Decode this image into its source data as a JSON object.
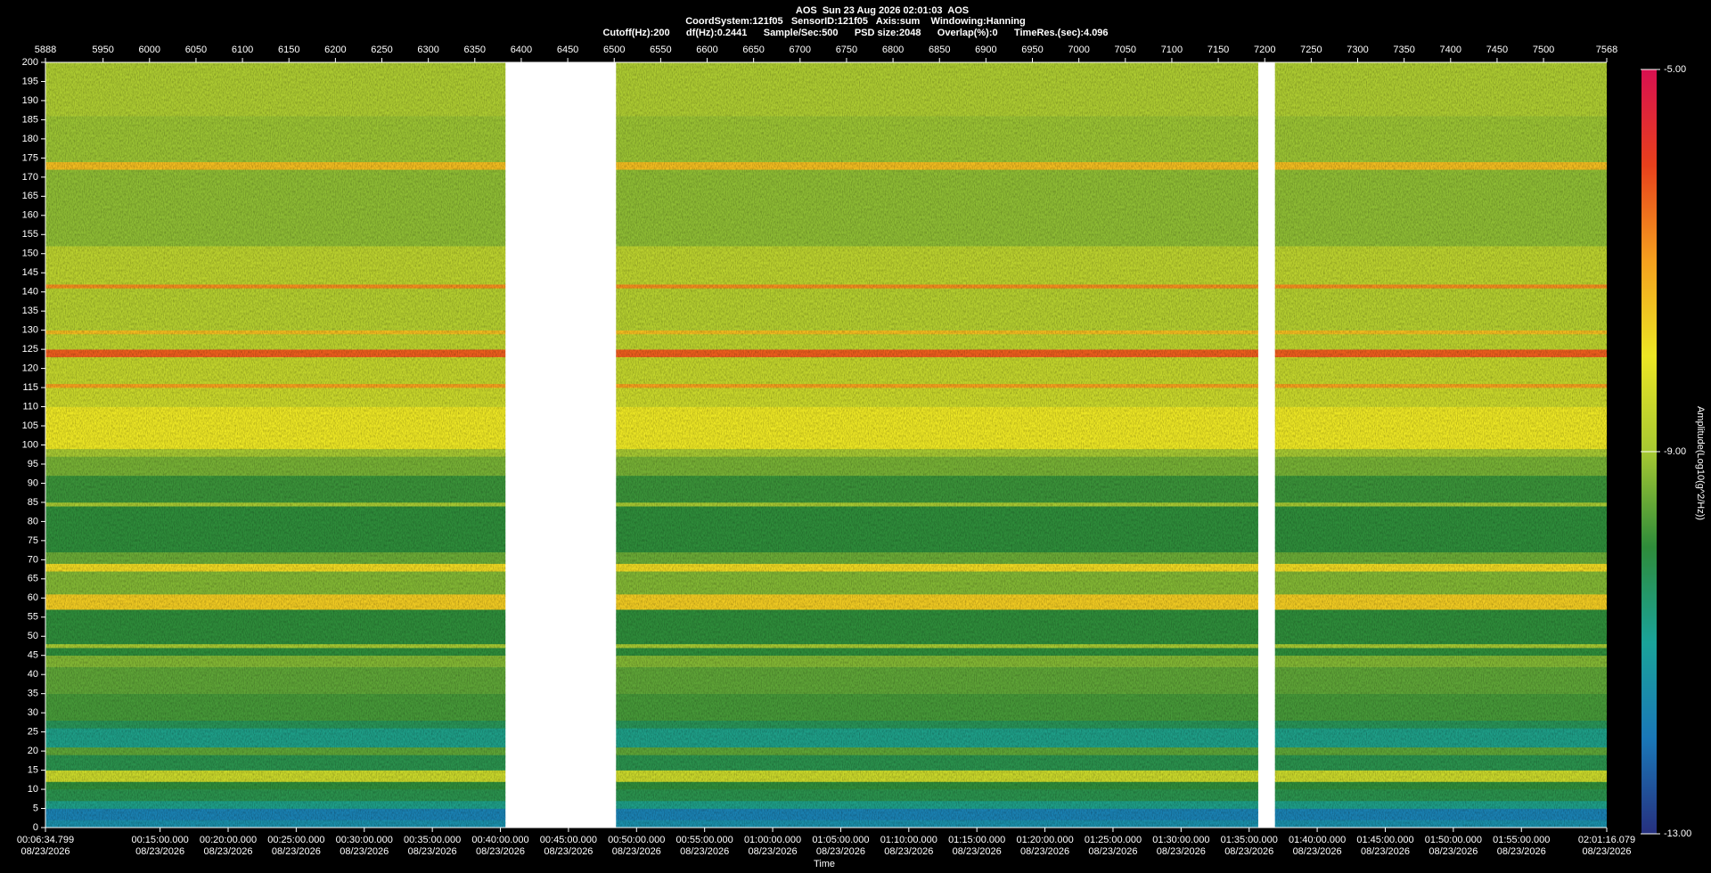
{
  "chart_data": {
    "type": "spectrogram",
    "title": "AOS  Sun 23 Aug 2026 02:01:03  AOS",
    "subtitle": "CoordSystem:121f05   SensorID:121f05   Axis:sum    Windowing:Hanning",
    "parameters": "Cutoff(Hz):200      df(Hz):0.2441      Sample/Sec:500      PSD size:2048      Overlap(%):0      TimeRes.(sec):4.096",
    "xlabel": "Time",
    "xlim": [
      5888,
      7568
    ],
    "xticks": [
      5888,
      5950,
      6000,
      6050,
      6100,
      6150,
      6200,
      6250,
      6300,
      6350,
      6400,
      6450,
      6500,
      6550,
      6600,
      6650,
      6700,
      6750,
      6800,
      6850,
      6900,
      6950,
      7000,
      7050,
      7100,
      7150,
      7200,
      7250,
      7300,
      7350,
      7400,
      7450,
      7500,
      7568
    ],
    "time_ticks": [
      {
        "value": 5888,
        "label": "00:06:34.799",
        "date": "08/23/2026"
      },
      {
        "value": 6011.34,
        "label": "00:15:00.000",
        "date": "08/23/2026"
      },
      {
        "value": 6084.58,
        "label": "00:20:00.000",
        "date": "08/23/2026"
      },
      {
        "value": 6157.82,
        "label": "00:25:00.000",
        "date": "08/23/2026"
      },
      {
        "value": 6231.07,
        "label": "00:30:00.000",
        "date": "08/23/2026"
      },
      {
        "value": 6304.31,
        "label": "00:35:00.000",
        "date": "08/23/2026"
      },
      {
        "value": 6377.55,
        "label": "00:40:00.000",
        "date": "08/23/2026"
      },
      {
        "value": 6450.79,
        "label": "00:45:00.000",
        "date": "08/23/2026"
      },
      {
        "value": 6524.03,
        "label": "00:50:00.000",
        "date": "08/23/2026"
      },
      {
        "value": 6597.28,
        "label": "00:55:00.000",
        "date": "08/23/2026"
      },
      {
        "value": 6670.52,
        "label": "01:00:00.000",
        "date": "08/23/2026"
      },
      {
        "value": 6743.76,
        "label": "01:05:00.000",
        "date": "08/23/2026"
      },
      {
        "value": 6817.0,
        "label": "01:10:00.000",
        "date": "08/23/2026"
      },
      {
        "value": 6890.24,
        "label": "01:15:00.000",
        "date": "08/23/2026"
      },
      {
        "value": 6963.49,
        "label": "01:20:00.000",
        "date": "08/23/2026"
      },
      {
        "value": 7036.73,
        "label": "01:25:00.000",
        "date": "08/23/2026"
      },
      {
        "value": 7109.97,
        "label": "01:30:00.000",
        "date": "08/23/2026"
      },
      {
        "value": 7183.21,
        "label": "01:35:00.000",
        "date": "08/23/2026"
      },
      {
        "value": 7256.45,
        "label": "01:40:00.000",
        "date": "08/23/2026"
      },
      {
        "value": 7329.7,
        "label": "01:45:00.000",
        "date": "08/23/2026"
      },
      {
        "value": 7402.94,
        "label": "01:50:00.000",
        "date": "08/23/2026"
      },
      {
        "value": 7476.18,
        "label": "01:55:00.000",
        "date": "08/23/2026"
      },
      {
        "value": 7568,
        "label": "02:01:16.079",
        "date": "08/23/2026"
      }
    ],
    "ylim": [
      0,
      200
    ],
    "yticks": [
      0,
      5,
      10,
      15,
      20,
      25,
      30,
      35,
      40,
      45,
      50,
      55,
      60,
      65,
      70,
      75,
      80,
      85,
      90,
      95,
      100,
      105,
      110,
      115,
      120,
      125,
      130,
      135,
      140,
      145,
      150,
      155,
      160,
      165,
      170,
      175,
      180,
      185,
      190,
      195,
      200
    ],
    "segments": [
      [
        5888,
        6383
      ],
      [
        6502,
        7193
      ],
      [
        7211,
        7568
      ]
    ],
    "bands": [
      0,
      2,
      5,
      7,
      10,
      12,
      15,
      19,
      21,
      26,
      28,
      35,
      42,
      45,
      47,
      48,
      57,
      61,
      67,
      69,
      72,
      84,
      85,
      92,
      97,
      99,
      110,
      115,
      116,
      123,
      125,
      129,
      130,
      141,
      142,
      152,
      172,
      174,
      186,
      200
    ],
    "values": [
      -11.5,
      -11.8,
      -10.8,
      -10.2,
      -10,
      -8.5,
      -10.2,
      -9.6,
      -10.8,
      -10.3,
      -9.8,
      -9.6,
      -9.3,
      -10,
      -9,
      -10,
      -7.6,
      -9.3,
      -7.8,
      -9.5,
      -10,
      -9,
      -9.9,
      -9.4,
      -9,
      -8,
      -8.5,
      -7,
      -8.6,
      -6.3,
      -8.7,
      -7.4,
      -8.8,
      -6.8,
      -8.7,
      -9.2,
      -7.4,
      -9.1,
      -8.9
    ],
    "colorbar": {
      "label": "Amplitude(Log10(g^2/Hz))",
      "clim": [
        -13,
        -5
      ],
      "ticks": [
        {
          "value": -5,
          "label": "-5.00"
        },
        {
          "value": -9,
          "label": "-9.00"
        },
        {
          "value": -13,
          "label": "-13.00"
        }
      ],
      "colormap": [
        "#26307f",
        "#1a78b8",
        "#1aa39a",
        "#2e8c3a",
        "#a6c832",
        "#ece624",
        "#f5a01e",
        "#e8401c",
        "#d81050"
      ]
    }
  }
}
